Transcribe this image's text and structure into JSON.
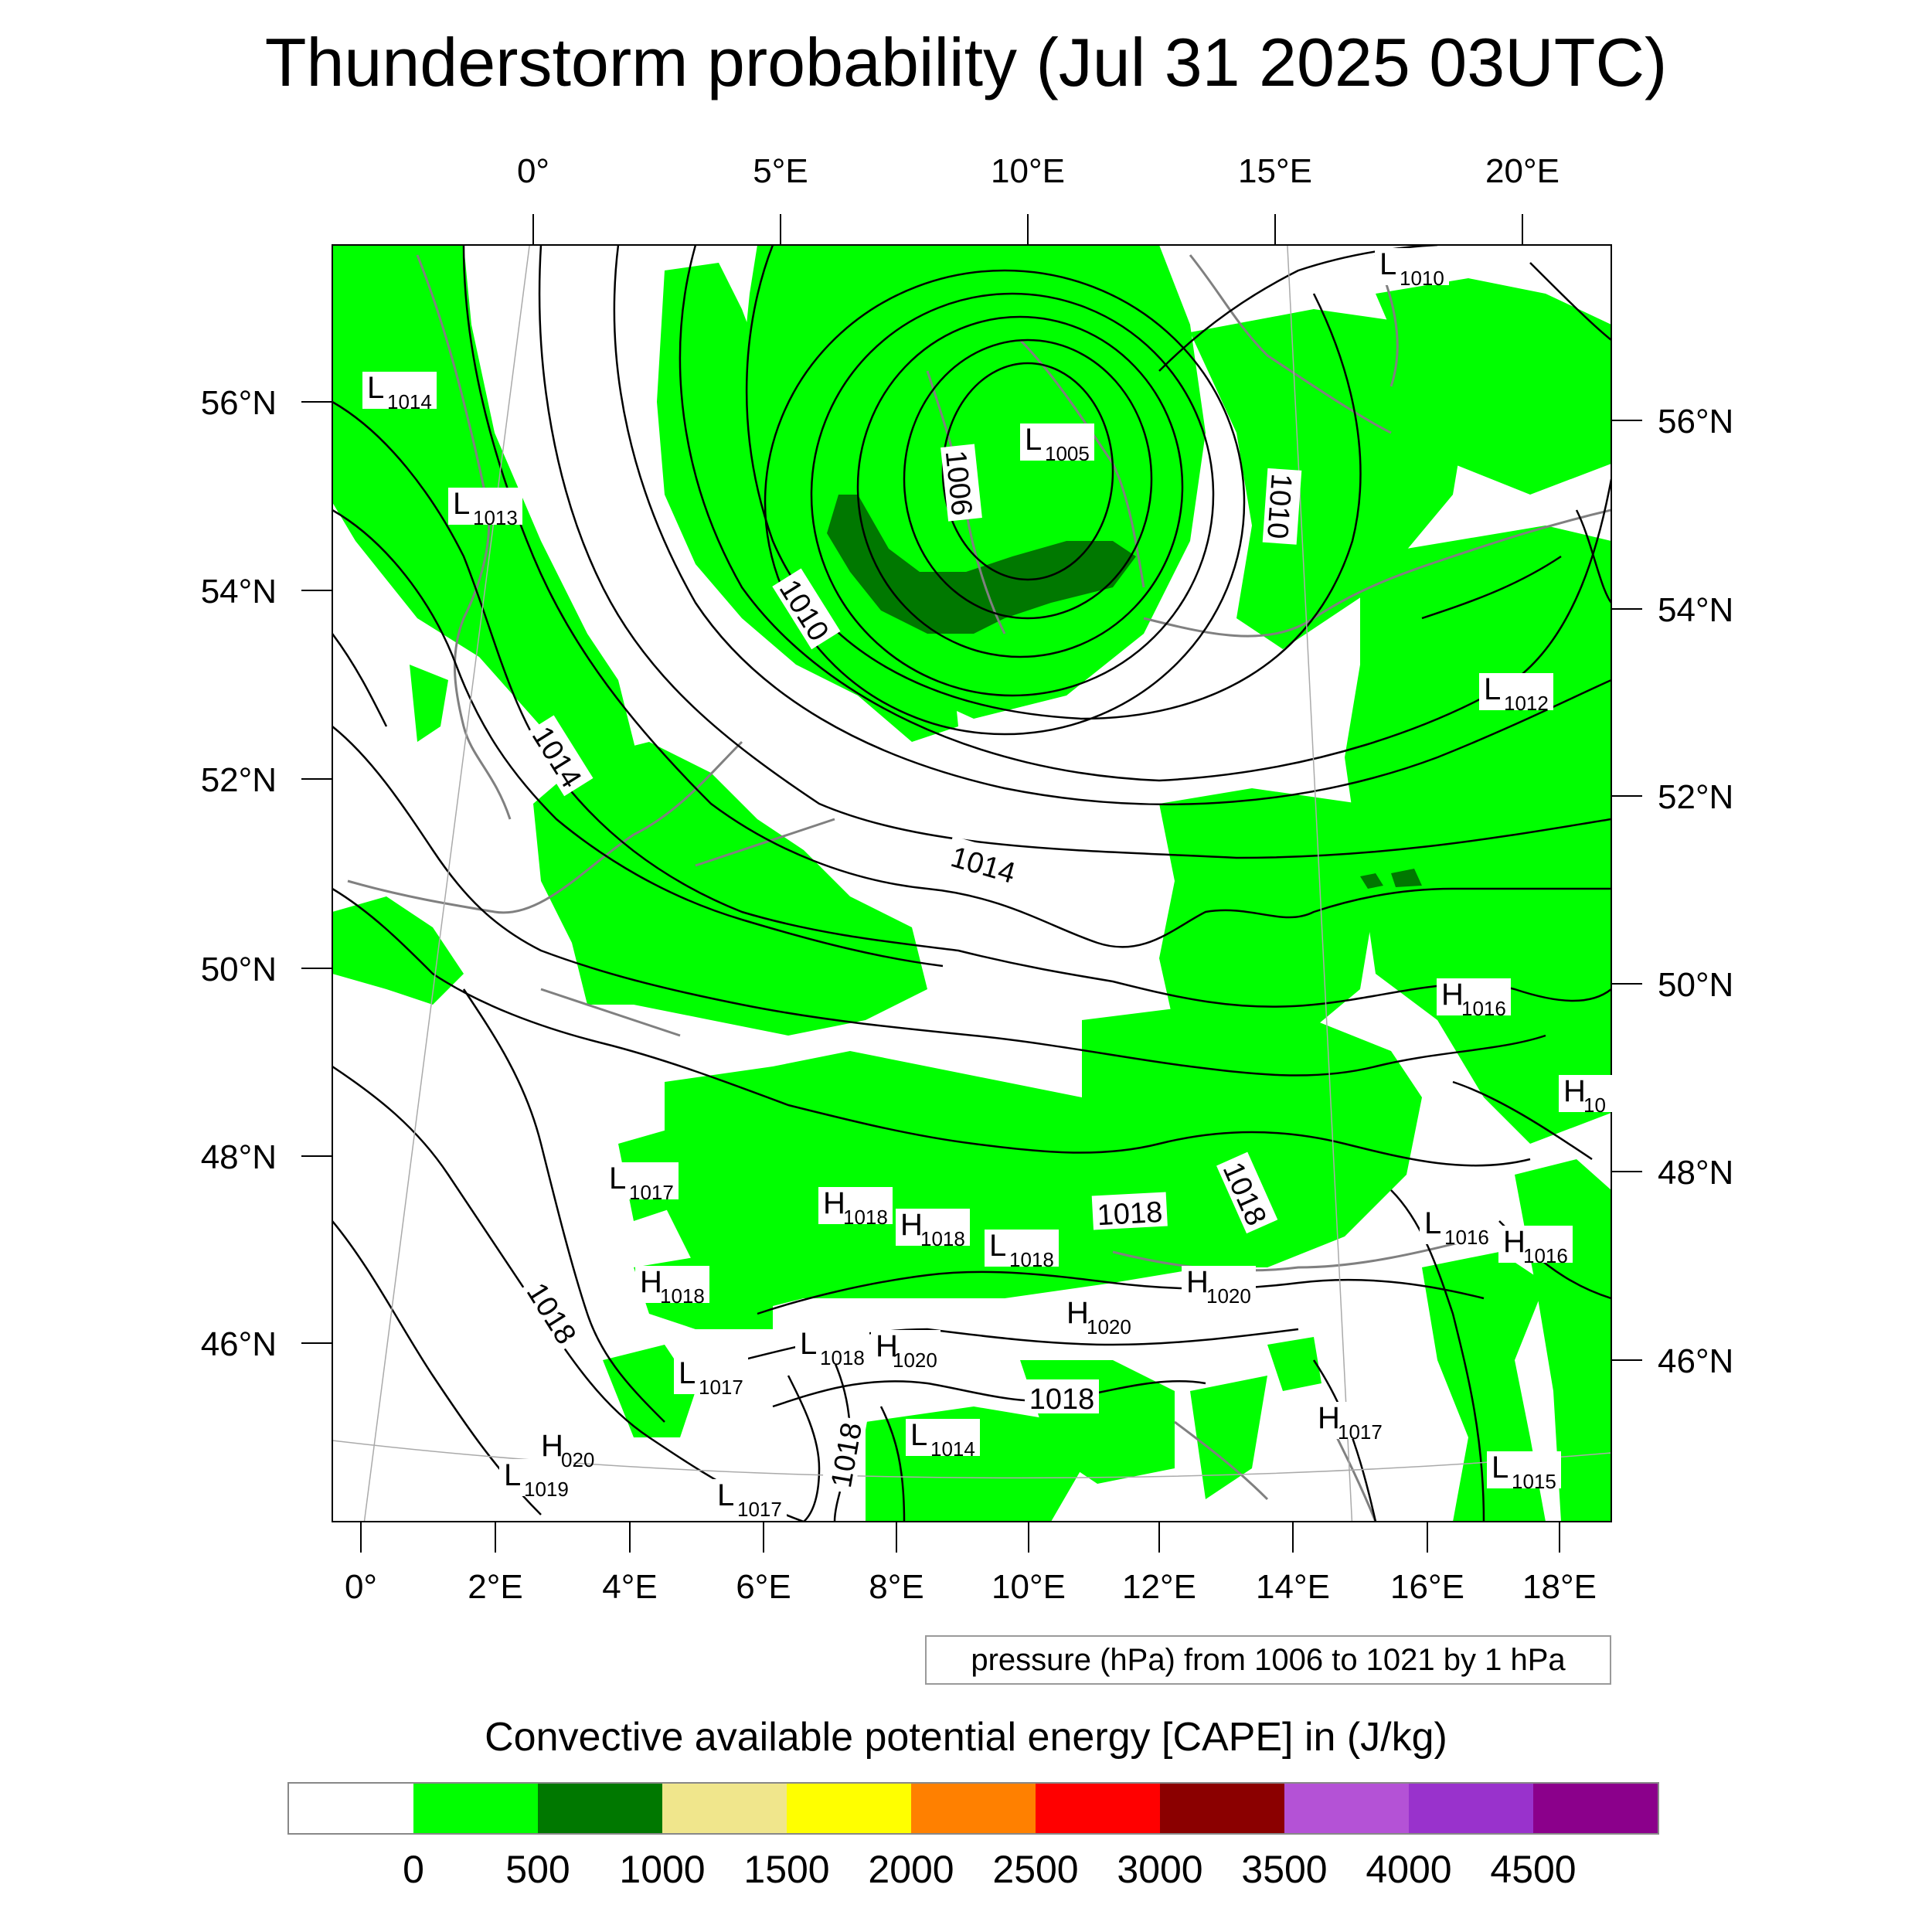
{
  "title": "Thunderstorm probability (Jul 31 2025 03UTC)",
  "top_axis_labels": [
    "0°",
    "5°E",
    "10°E",
    "15°E",
    "20°E"
  ],
  "bottom_axis_labels": [
    "0°",
    "2°E",
    "4°E",
    "6°E",
    "8°E",
    "10°E",
    "12°E",
    "14°E",
    "16°E",
    "18°E"
  ],
  "left_axis_labels": [
    "56°N",
    "54°N",
    "52°N",
    "50°N",
    "48°N",
    "46°N"
  ],
  "right_axis_labels": [
    "56°N",
    "54°N",
    "52°N",
    "50°N",
    "48°N",
    "46°N"
  ],
  "isobar_labels": [
    "1006",
    "1010",
    "1010",
    "1014",
    "1014",
    "1018",
    "1018",
    "1018",
    "1018",
    "1018"
  ],
  "pressure_systems": [
    {
      "letter": "L",
      "value": "1010"
    },
    {
      "letter": "L",
      "value": "1014"
    },
    {
      "letter": "L",
      "value": "1005"
    },
    {
      "letter": "L",
      "value": "1013"
    },
    {
      "letter": "L",
      "value": "1012"
    },
    {
      "letter": "H",
      "value": "1016"
    },
    {
      "letter": "H",
      "value": "10"
    },
    {
      "letter": "L",
      "value": "1017"
    },
    {
      "letter": "H",
      "value": "1018"
    },
    {
      "letter": "H",
      "value": "1018"
    },
    {
      "letter": "L",
      "value": "1018"
    },
    {
      "letter": "L",
      "value": "1016"
    },
    {
      "letter": "H",
      "value": "1016"
    },
    {
      "letter": "H",
      "value": "1018"
    },
    {
      "letter": "H",
      "value": "1020"
    },
    {
      "letter": "H",
      "value": "1020"
    },
    {
      "letter": "L",
      "value": "1018"
    },
    {
      "letter": "H",
      "value": "1020"
    },
    {
      "letter": "L",
      "value": "1017"
    },
    {
      "letter": "H",
      "value": "1017"
    },
    {
      "letter": "L",
      "value": "1014"
    },
    {
      "letter": "L",
      "value": "1019"
    },
    {
      "letter": "H",
      "value": "020"
    },
    {
      "letter": "L",
      "value": "1017"
    },
    {
      "letter": "L",
      "value": "1015"
    }
  ],
  "pressure_note": "pressure (hPa) from 1006 to 1021 by 1 hPa",
  "legend": {
    "title": "Convective available potential energy [CAPE] in (J/kg)",
    "colors": [
      "#ffffff",
      "#00ff00",
      "#007800",
      "#f0e68c",
      "#ffff00",
      "#ff8000",
      "#ff0000",
      "#8b0000",
      "#b452d6",
      "#9932cc",
      "#8b008b"
    ],
    "labels": [
      "0",
      "500",
      "1000",
      "1500",
      "2000",
      "2500",
      "3000",
      "3500",
      "4000",
      "4500"
    ]
  }
}
